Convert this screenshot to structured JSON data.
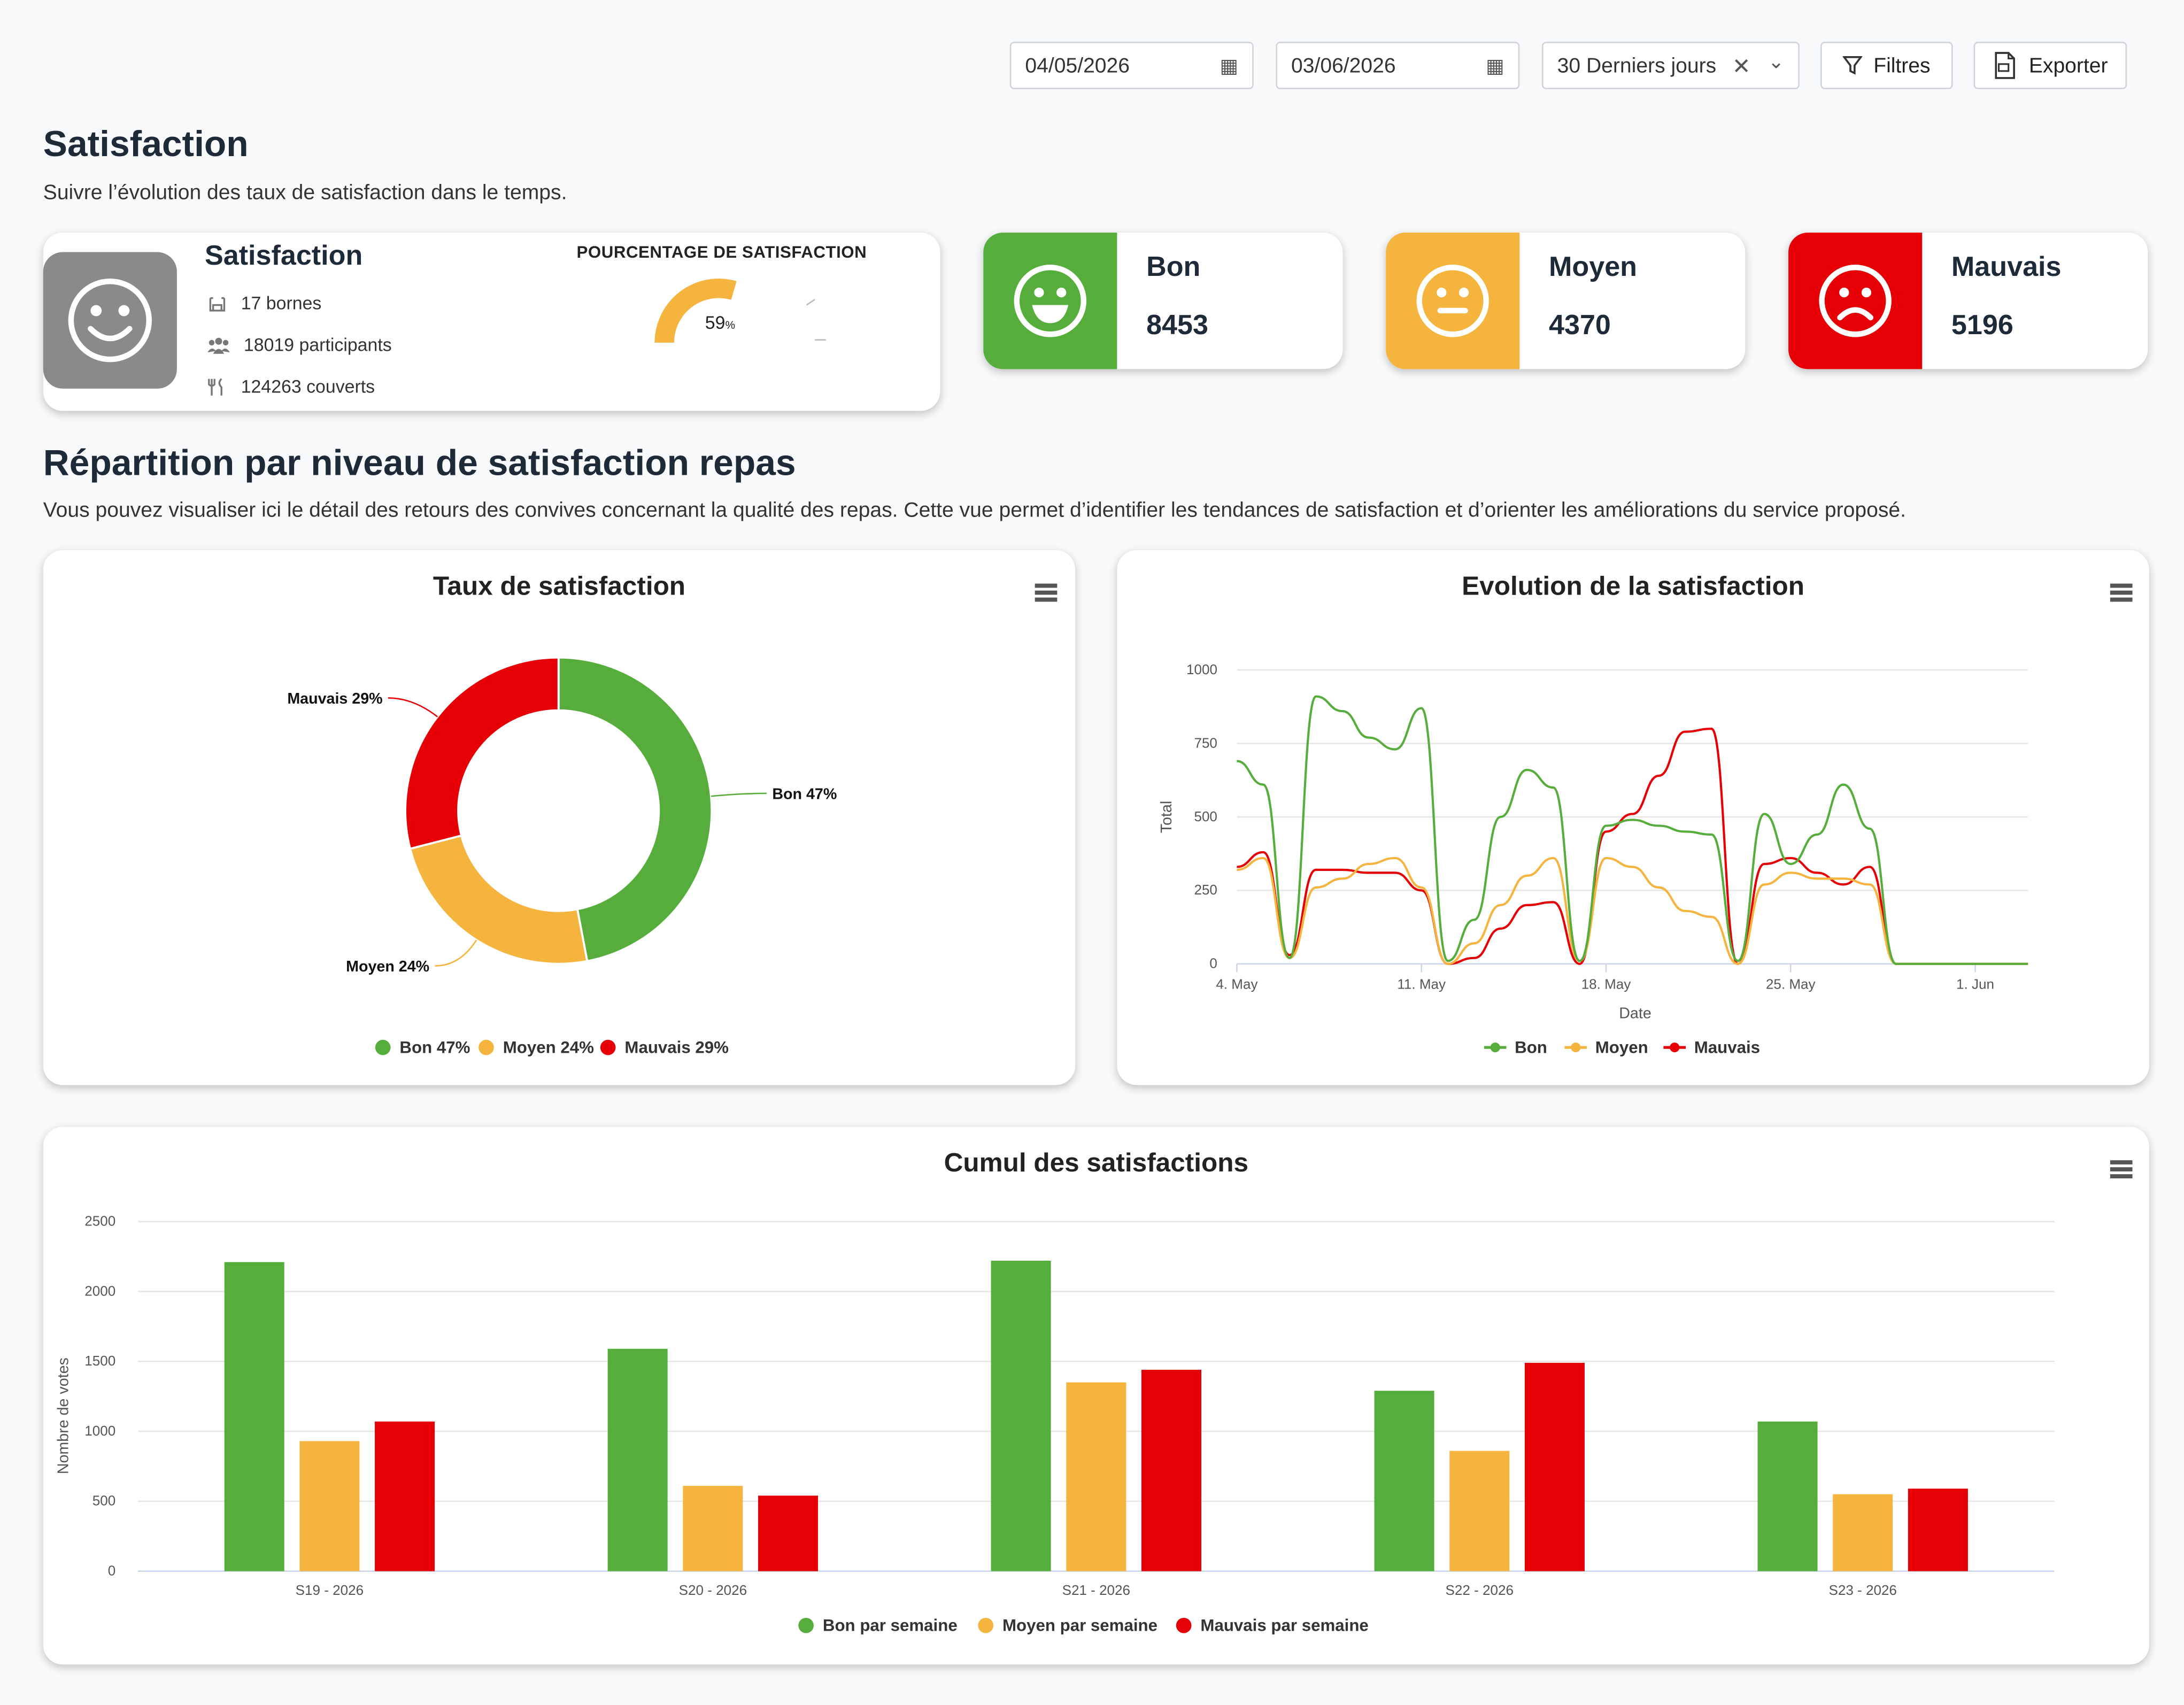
{
  "filters": {
    "date_from": "04/05/2026",
    "date_to": "03/06/2026",
    "period": "30 Derniers jours",
    "filters_label": "Filtres",
    "export_label": "Exporter"
  },
  "header": {
    "title": "Satisfaction",
    "subtitle": "Suivre l’évolution des taux de satisfaction dans le temps."
  },
  "summary": {
    "title": "Satisfaction",
    "bornes": "17 bornes",
    "participants": "18019 participants",
    "couverts": "124263 couverts",
    "gauge_title": "POURCENTAGE DE SATISFACTION",
    "gauge_value": 59,
    "gauge_text": "59",
    "gauge_unit": "%"
  },
  "kpis": {
    "bon": {
      "label": "Bon",
      "value": "8453",
      "color": "#57ad3c"
    },
    "moyen": {
      "label": "Moyen",
      "value": "4370",
      "color": "#f4b43e"
    },
    "mauvais": {
      "label": "Mauvais",
      "value": "5196",
      "color": "#e60005"
    }
  },
  "section": {
    "title": "Répartition par niveau de satisfaction repas",
    "description": "Vous pouvez visualiser ici le détail des retours des convives concernant la qualité des repas. Cette vue permet d’identifier les tendances de satisfaction et d’orienter les améliorations du service proposé."
  },
  "chart_data": [
    {
      "type": "pie",
      "title": "Taux de satisfaction",
      "slices": [
        {
          "name": "Bon",
          "value": 47,
          "label": "Bon 47%",
          "color": "#57ad3c"
        },
        {
          "name": "Moyen",
          "value": 24,
          "label": "Moyen 24%",
          "color": "#f4b43e"
        },
        {
          "name": "Mauvais",
          "value": 29,
          "label": "Mauvais 29%",
          "color": "#e60005"
        }
      ],
      "legend": [
        "Bon 47%",
        "Moyen 24%",
        "Mauvais 29%"
      ],
      "legend_position": "bottom"
    },
    {
      "type": "line",
      "title": "Evolution de la satisfaction",
      "xlabel": "Date",
      "ylabel": "Total",
      "ylim": [
        0,
        1000
      ],
      "yticks": [
        0,
        250,
        500,
        750,
        1000
      ],
      "xticks": [
        "4. May",
        "11. May",
        "18. May",
        "25. May",
        "1. Jun"
      ],
      "x": [
        "2026-05-04",
        "2026-05-05",
        "2026-05-06",
        "2026-05-07",
        "2026-05-08",
        "2026-05-09",
        "2026-05-10",
        "2026-05-11",
        "2026-05-12",
        "2026-05-13",
        "2026-05-14",
        "2026-05-15",
        "2026-05-16",
        "2026-05-17",
        "2026-05-18",
        "2026-05-19",
        "2026-05-20",
        "2026-05-21",
        "2026-05-22",
        "2026-05-23",
        "2026-05-24",
        "2026-05-25",
        "2026-05-26",
        "2026-05-27",
        "2026-05-28",
        "2026-05-29",
        "2026-05-30",
        "2026-05-31",
        "2026-06-01",
        "2026-06-02",
        "2026-06-03"
      ],
      "series": [
        {
          "name": "Bon",
          "color": "#57ad3c",
          "values": [
            690,
            610,
            20,
            910,
            860,
            770,
            730,
            870,
            10,
            150,
            500,
            660,
            600,
            10,
            470,
            490,
            470,
            450,
            440,
            10,
            510,
            340,
            440,
            610,
            460,
            0,
            0,
            0,
            0,
            0,
            0
          ]
        },
        {
          "name": "Moyen",
          "color": "#f4b43e",
          "values": [
            320,
            360,
            20,
            260,
            290,
            340,
            360,
            260,
            0,
            70,
            200,
            300,
            360,
            10,
            360,
            330,
            260,
            180,
            160,
            0,
            270,
            310,
            290,
            290,
            270,
            0,
            0,
            0,
            0,
            0,
            0
          ]
        },
        {
          "name": "Mauvais",
          "color": "#e60005",
          "values": [
            330,
            380,
            30,
            320,
            320,
            310,
            310,
            250,
            0,
            20,
            120,
            200,
            210,
            0,
            450,
            510,
            640,
            790,
            800,
            0,
            340,
            360,
            310,
            270,
            330,
            0,
            0,
            0,
            0,
            0,
            0
          ]
        }
      ],
      "legend_position": "bottom"
    },
    {
      "type": "bar",
      "title": "Cumul des satisfactions",
      "ylabel": "Nombre de votes",
      "ylim": [
        0,
        2500
      ],
      "yticks": [
        0,
        500,
        1000,
        1500,
        2000,
        2500
      ],
      "categories": [
        "S19 - 2026",
        "S20 - 2026",
        "S21 - 2026",
        "S22 - 2026",
        "S23 - 2026"
      ],
      "series": [
        {
          "name": "Bon par semaine",
          "color": "#57ad3c",
          "values": [
            2210,
            1590,
            2220,
            1290,
            1070
          ]
        },
        {
          "name": "Moyen par semaine",
          "color": "#f4b43e",
          "values": [
            930,
            610,
            1350,
            860,
            550
          ]
        },
        {
          "name": "Mauvais par semaine",
          "color": "#e60005",
          "values": [
            1070,
            540,
            1440,
            1490,
            590
          ]
        }
      ],
      "legend_position": "bottom"
    }
  ]
}
